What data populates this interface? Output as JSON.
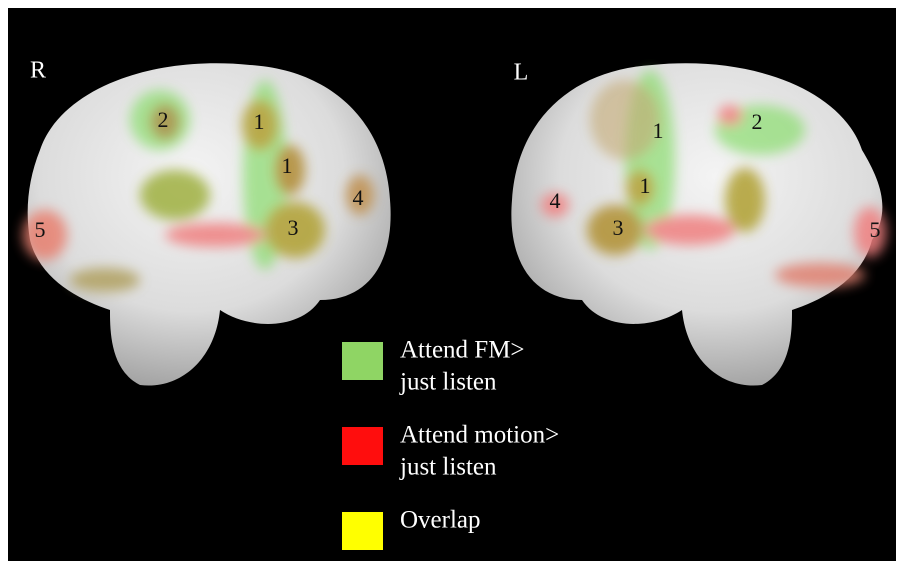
{
  "hemispheres": [
    {
      "label": "R",
      "regions": [
        "2",
        "1",
        "1",
        "4",
        "5",
        "3"
      ]
    },
    {
      "label": "L",
      "regions": [
        "1",
        "2",
        "1",
        "4",
        "3",
        "5"
      ]
    }
  ],
  "legend": [
    {
      "lines": [
        "Attend FM>",
        "just listen"
      ],
      "color": "#8fd564"
    },
    {
      "lines": [
        "Attend motion>",
        "just listen"
      ],
      "color": "#ff0d0d"
    },
    {
      "lines": [
        "Overlap"
      ],
      "color": "#ffff00"
    }
  ]
}
